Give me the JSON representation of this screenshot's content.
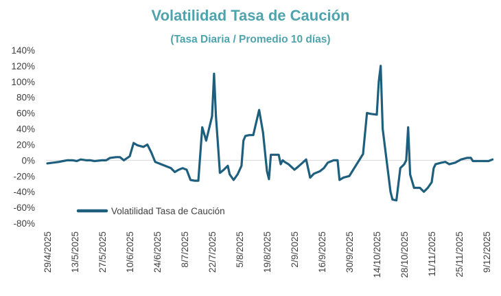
{
  "chart_data": {
    "type": "line",
    "title": "Volatilidad Tasa de Caución",
    "subtitle": "(Tasa Diaria / Promedio 10 días)",
    "xlabel": "",
    "ylabel": "",
    "ylim": [
      -80,
      140
    ],
    "y_ticks": [
      "140%",
      "120%",
      "100%",
      "80%",
      "60%",
      "40%",
      "20%",
      "0%",
      "-20%",
      "-40%",
      "-60%",
      "-80%"
    ],
    "x_tick_labels": [
      "29/4/2025",
      "13/5/2025",
      "27/5/2025",
      "10/6/2025",
      "24/6/2025",
      "8/7/2025",
      "22/7/2025",
      "5/8/2025",
      "19/8/2025",
      "2/9/2025",
      "16/9/2025",
      "30/9/2025",
      "14/10/2025",
      "28/10/2025",
      "11/11/2025",
      "25/11/2025",
      "9/12/2025"
    ],
    "legend": {
      "position": "bottom-left"
    },
    "grid": false,
    "colors": {
      "line": "#1f5f7e",
      "title": "#4fa3ad"
    },
    "series": [
      {
        "name": "Volatilidad Tasa de Caución",
        "points": [
          [
            "2025-04-29",
            -4
          ],
          [
            "2025-05-02",
            -3
          ],
          [
            "2025-05-05",
            -2
          ],
          [
            "2025-05-07",
            -1
          ],
          [
            "2025-05-09",
            0
          ],
          [
            "2025-05-12",
            0
          ],
          [
            "2025-05-14",
            -1
          ],
          [
            "2025-05-16",
            1
          ],
          [
            "2025-05-19",
            0
          ],
          [
            "2025-05-21",
            0
          ],
          [
            "2025-05-23",
            -1
          ],
          [
            "2025-05-27",
            0
          ],
          [
            "2025-05-29",
            0
          ],
          [
            "2025-05-31",
            3
          ],
          [
            "2025-06-03",
            4
          ],
          [
            "2025-06-05",
            4
          ],
          [
            "2025-06-07",
            0
          ],
          [
            "2025-06-10",
            5
          ],
          [
            "2025-06-12",
            22
          ],
          [
            "2025-06-14",
            19
          ],
          [
            "2025-06-17",
            17
          ],
          [
            "2025-06-19",
            20
          ],
          [
            "2025-06-21",
            10
          ],
          [
            "2025-06-23",
            -2
          ],
          [
            "2025-06-26",
            -5
          ],
          [
            "2025-06-28",
            -7
          ],
          [
            "2025-07-01",
            -10
          ],
          [
            "2025-07-03",
            -15
          ],
          [
            "2025-07-05",
            -12
          ],
          [
            "2025-07-07",
            -10
          ],
          [
            "2025-07-09",
            -12
          ],
          [
            "2025-07-11",
            -25
          ],
          [
            "2025-07-13",
            -26
          ],
          [
            "2025-07-15",
            -26
          ],
          [
            "2025-07-17",
            42
          ],
          [
            "2025-07-19",
            25
          ],
          [
            "2025-07-22",
            56
          ],
          [
            "2025-07-23",
            110
          ],
          [
            "2025-07-24",
            55
          ],
          [
            "2025-07-25",
            20
          ],
          [
            "2025-07-26",
            -16
          ],
          [
            "2025-07-28",
            -12
          ],
          [
            "2025-07-30",
            -7
          ],
          [
            "2025-07-31",
            -18
          ],
          [
            "2025-08-02",
            -25
          ],
          [
            "2025-08-04",
            -18
          ],
          [
            "2025-08-06",
            -7
          ],
          [
            "2025-08-07",
            25
          ],
          [
            "2025-08-08",
            31
          ],
          [
            "2025-08-10",
            32
          ],
          [
            "2025-08-12",
            32
          ],
          [
            "2025-08-15",
            64
          ],
          [
            "2025-08-17",
            35
          ],
          [
            "2025-08-19",
            -14
          ],
          [
            "2025-08-20",
            -24
          ],
          [
            "2025-08-21",
            7
          ],
          [
            "2025-08-23",
            7
          ],
          [
            "2025-08-25",
            7
          ],
          [
            "2025-08-26",
            -5
          ],
          [
            "2025-08-27",
            0
          ],
          [
            "2025-08-28",
            -2
          ],
          [
            "2025-08-30",
            -5
          ],
          [
            "2025-09-02",
            -12
          ],
          [
            "2025-09-04",
            -8
          ],
          [
            "2025-09-08",
            1
          ],
          [
            "2025-09-10",
            -22
          ],
          [
            "2025-09-12",
            -17
          ],
          [
            "2025-09-15",
            -14
          ],
          [
            "2025-09-17",
            -10
          ],
          [
            "2025-09-19",
            -3
          ],
          [
            "2025-09-22",
            0
          ],
          [
            "2025-09-24",
            0
          ],
          [
            "2025-09-25",
            -25
          ],
          [
            "2025-09-27",
            -22
          ],
          [
            "2025-09-30",
            -20
          ],
          [
            "2025-10-02",
            -12
          ],
          [
            "2025-10-05",
            0
          ],
          [
            "2025-10-07",
            8
          ],
          [
            "2025-10-09",
            60
          ],
          [
            "2025-10-11",
            59
          ],
          [
            "2025-10-14",
            58
          ],
          [
            "2025-10-15",
            100
          ],
          [
            "2025-10-16",
            120
          ],
          [
            "2025-10-17",
            40
          ],
          [
            "2025-10-19",
            0
          ],
          [
            "2025-10-21",
            -40
          ],
          [
            "2025-10-22",
            -50
          ],
          [
            "2025-10-24",
            -51
          ],
          [
            "2025-10-26",
            -10
          ],
          [
            "2025-10-28",
            -5
          ],
          [
            "2025-10-29",
            0
          ],
          [
            "2025-10-30",
            42
          ],
          [
            "2025-10-31",
            -18
          ],
          [
            "2025-11-02",
            -35
          ],
          [
            "2025-11-05",
            -35
          ],
          [
            "2025-11-07",
            -40
          ],
          [
            "2025-11-09",
            -35
          ],
          [
            "2025-11-11",
            -28
          ],
          [
            "2025-11-12",
            -10
          ],
          [
            "2025-11-13",
            -5
          ],
          [
            "2025-11-16",
            -3
          ],
          [
            "2025-11-18",
            -2
          ],
          [
            "2025-11-20",
            -5
          ],
          [
            "2025-11-23",
            -3
          ],
          [
            "2025-11-26",
            1
          ],
          [
            "2025-11-29",
            3
          ],
          [
            "2025-12-01",
            3
          ],
          [
            "2025-12-02",
            -1
          ],
          [
            "2025-12-05",
            -1
          ],
          [
            "2025-12-08",
            -1
          ],
          [
            "2025-12-10",
            -1
          ],
          [
            "2025-12-12",
            1
          ]
        ]
      }
    ]
  }
}
